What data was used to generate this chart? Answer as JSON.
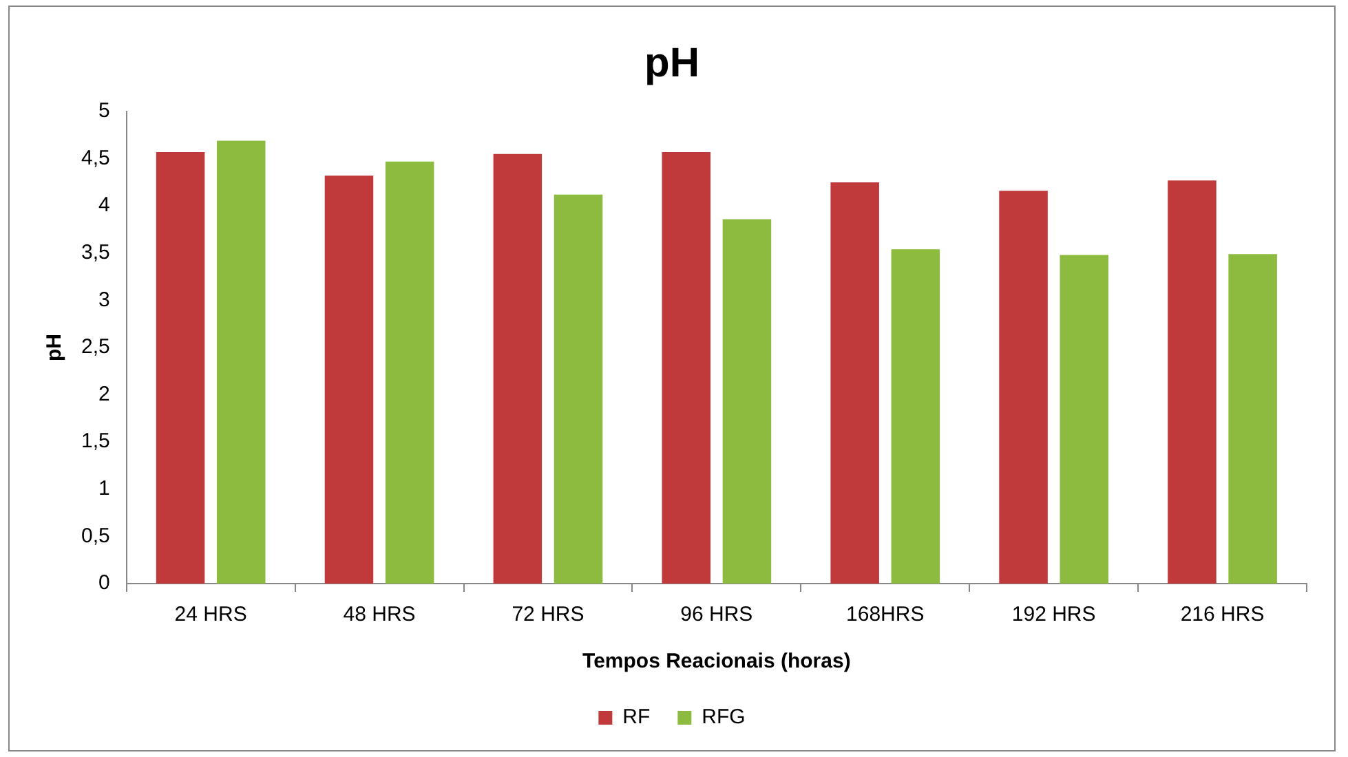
{
  "chart_data": {
    "type": "bar",
    "title": "pH",
    "xlabel": "Tempos Reacionais (horas)",
    "ylabel": "pH",
    "categories": [
      "24 HRS",
      "48 HRS",
      "72 HRS",
      "96 HRS",
      "168HRS",
      "192 HRS",
      "216 HRS"
    ],
    "series": [
      {
        "name": "RF",
        "color": "#c0393b",
        "values": [
          4.57,
          4.32,
          4.55,
          4.57,
          4.25,
          4.16,
          4.27
        ]
      },
      {
        "name": "RFG",
        "color": "#8dbb3f",
        "values": [
          4.69,
          4.47,
          4.12,
          3.86,
          3.54,
          3.48,
          3.49
        ]
      }
    ],
    "ylim": [
      0,
      5
    ],
    "yticks": [
      0,
      {
        "value": 0.5,
        "label": "0,5"
      },
      1,
      {
        "value": 1.5,
        "label": "1,5"
      },
      2,
      {
        "value": 2.5,
        "label": "2,5"
      },
      3,
      {
        "value": 3.5,
        "label": "3,5"
      },
      4,
      {
        "value": 4.5,
        "label": "4,5"
      },
      5
    ],
    "grid": false,
    "legend": "bottom"
  }
}
